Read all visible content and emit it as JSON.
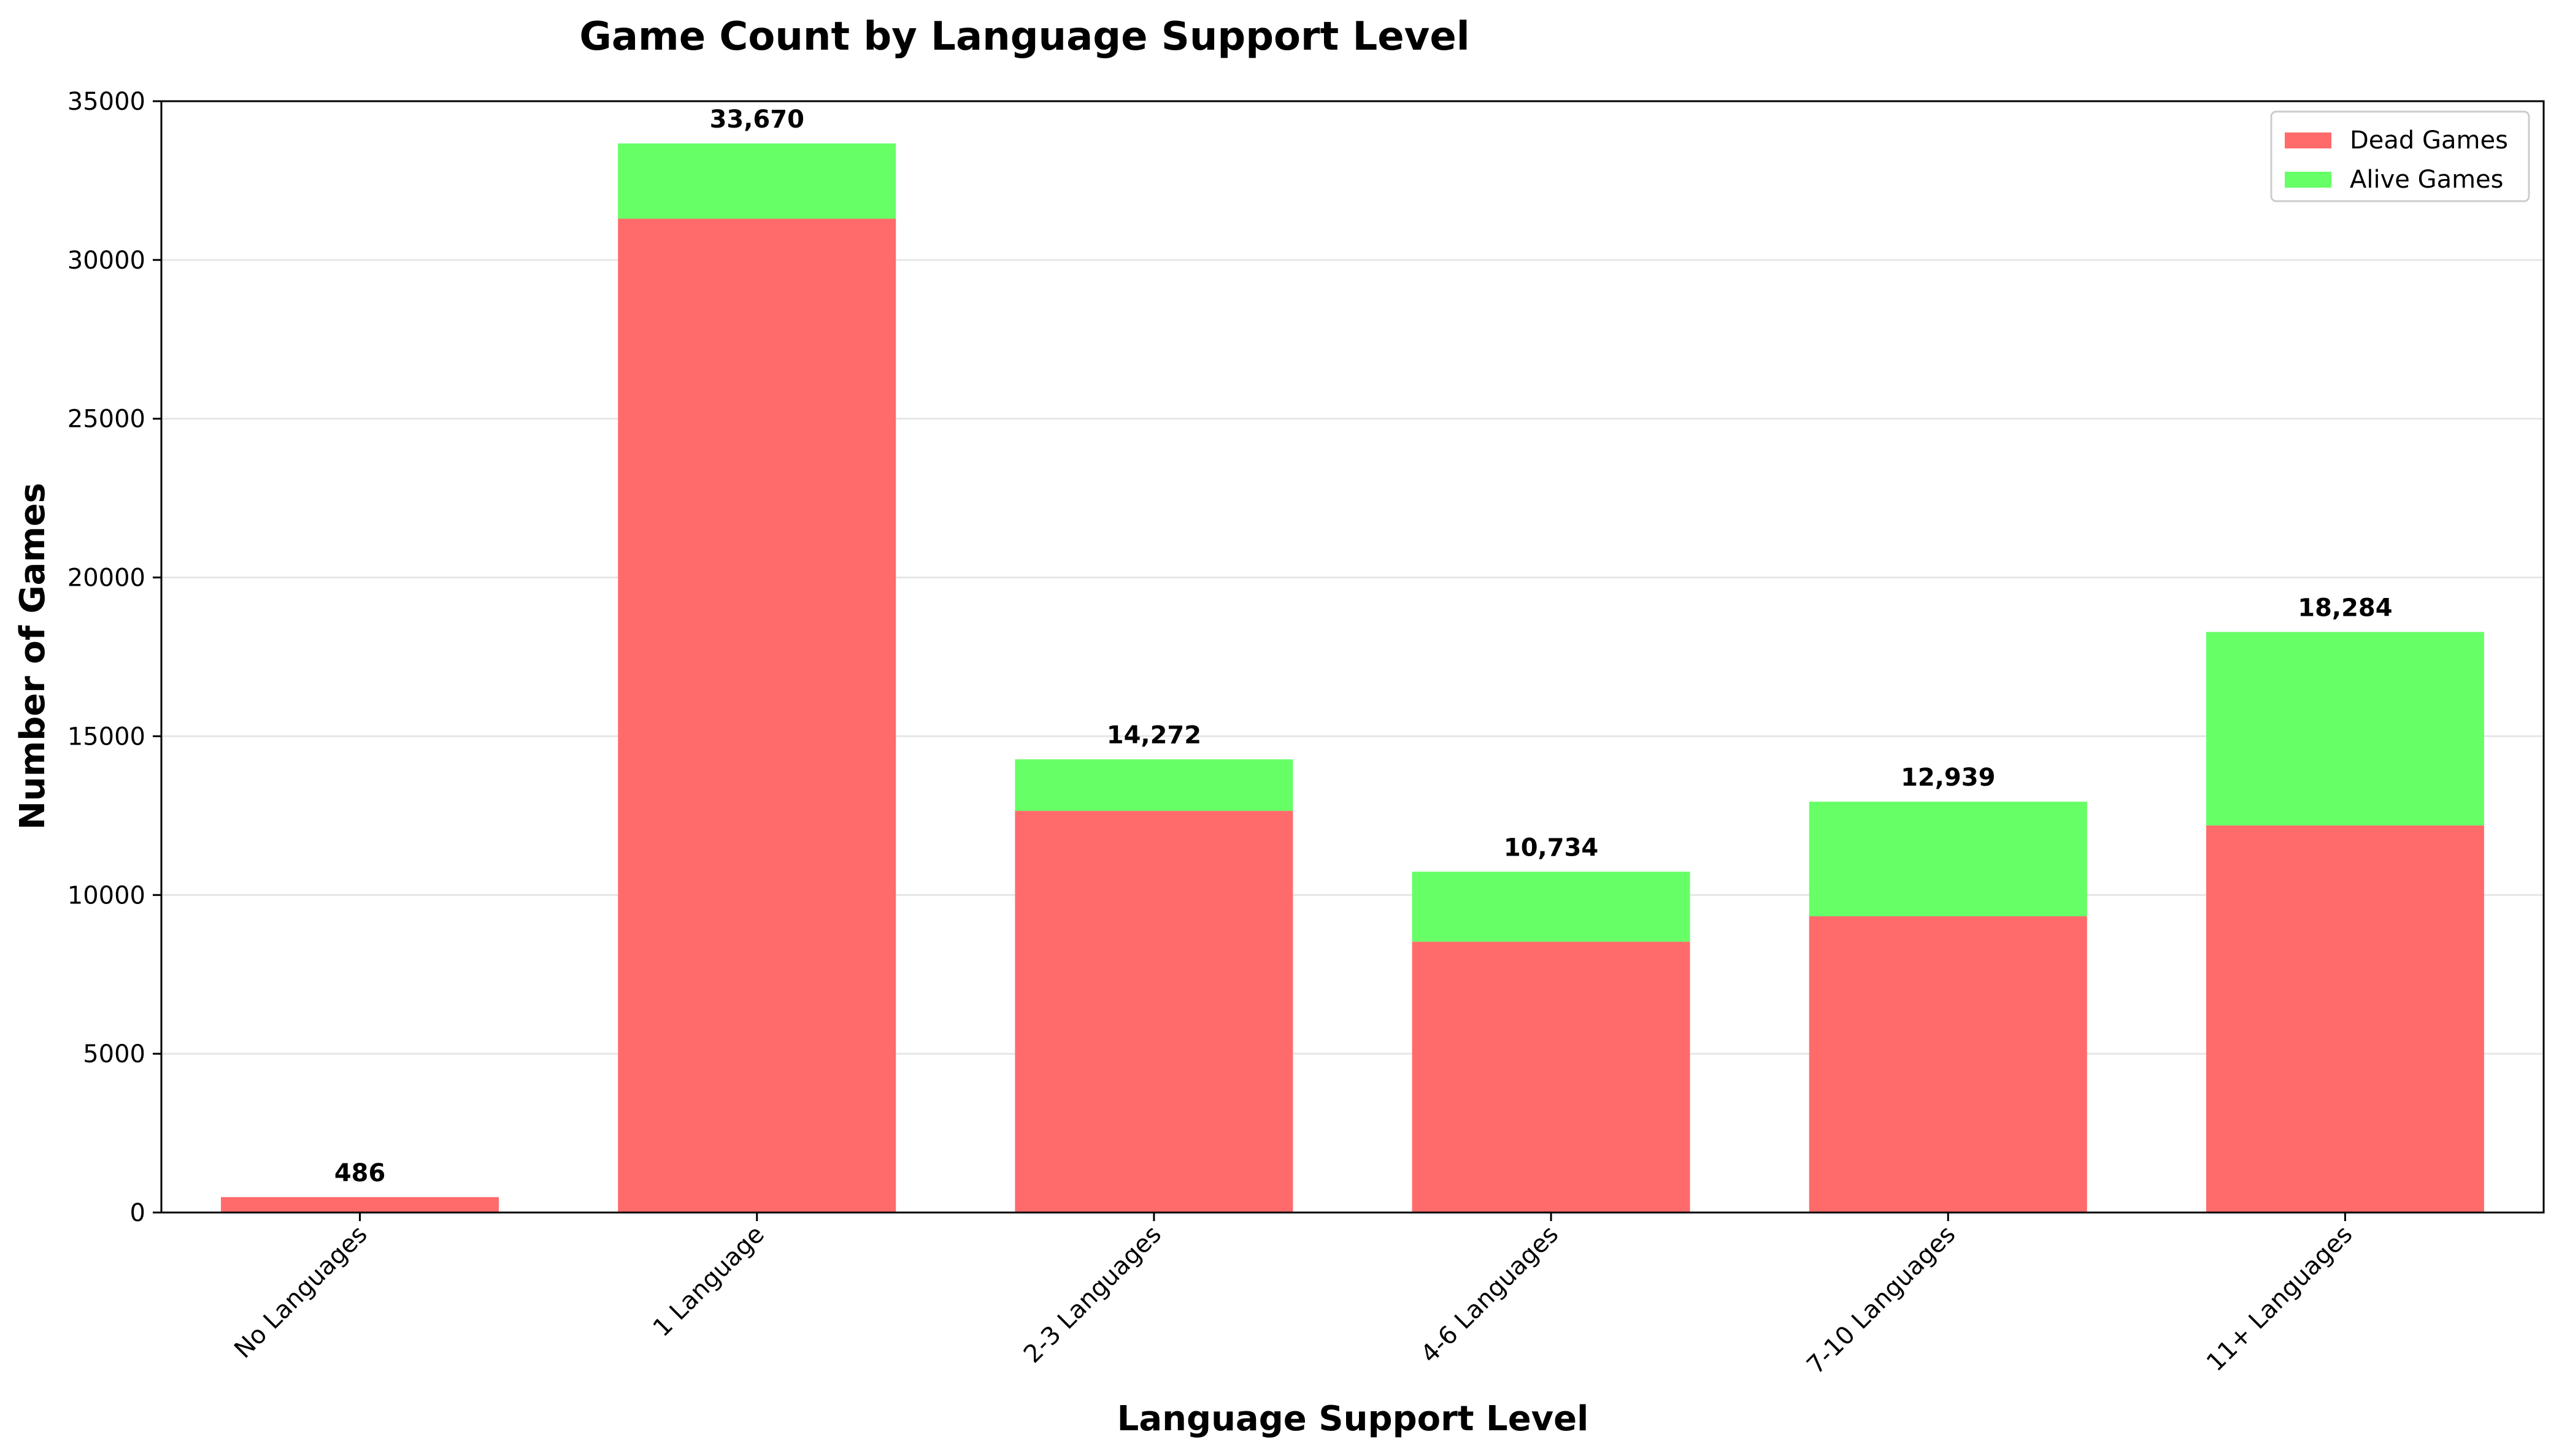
{
  "chart_data": {
    "type": "bar",
    "stacked": true,
    "title": "Game Count by Language Support Level",
    "xlabel": "Language Support Level",
    "ylabel": "Number of Games",
    "categories": [
      "No Languages",
      "1 Language",
      "2-3 Languages",
      "4-6 Languages",
      "7-10 Languages",
      "11+ Languages"
    ],
    "series": [
      {
        "name": "Dead Games",
        "color": "#ff6b6b",
        "values": [
          486,
          31300,
          12650,
          8530,
          9330,
          12190
        ]
      },
      {
        "name": "Alive Games",
        "color": "#66ff66",
        "values": [
          0,
          2370,
          1622,
          2204,
          3609,
          6094
        ]
      }
    ],
    "totals_labels": [
      "486",
      "33,670",
      "14,272",
      "10,734",
      "12,939",
      "18,284"
    ],
    "totals": [
      486,
      33670,
      14272,
      10734,
      12939,
      18284
    ],
    "ylim": [
      0,
      35000
    ],
    "yticks": [
      0,
      5000,
      10000,
      15000,
      20000,
      25000,
      30000,
      35000
    ],
    "ytick_labels": [
      "0",
      "5000",
      "10000",
      "15000",
      "20000",
      "25000",
      "30000",
      "35000"
    ],
    "grid": "y",
    "legend_position": "top-right"
  }
}
